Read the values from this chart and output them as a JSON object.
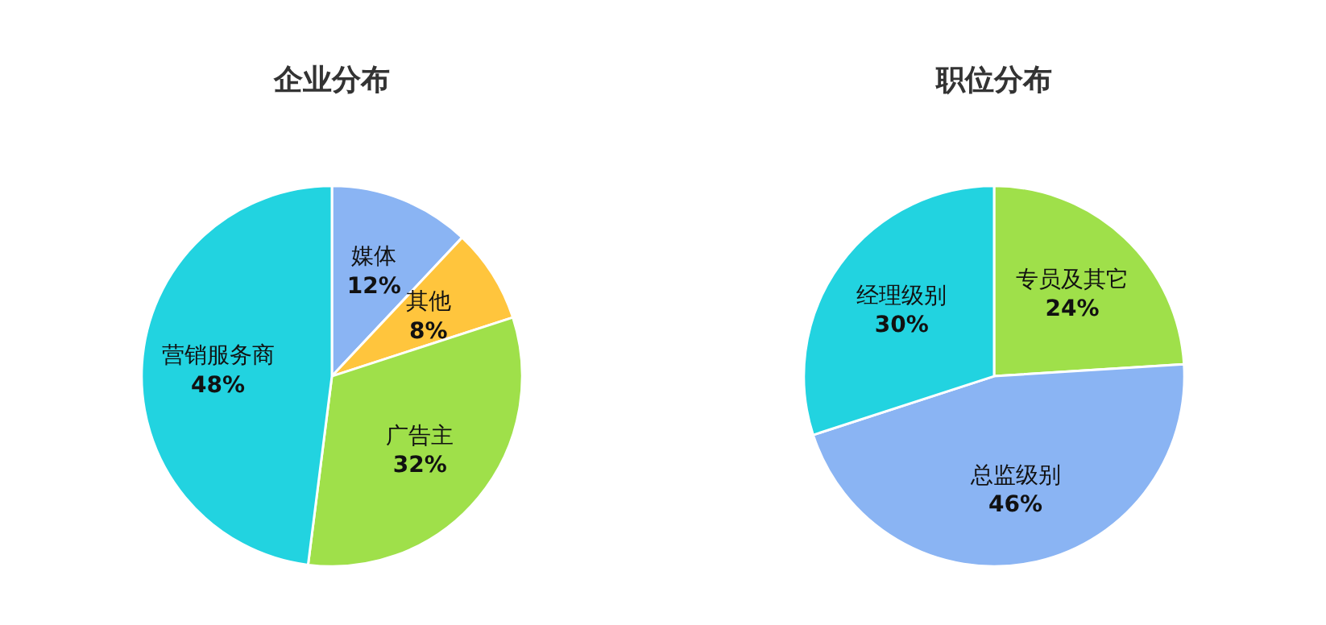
{
  "chart_data": [
    {
      "type": "pie",
      "title": "企业分布",
      "categories": [
        "媒体",
        "其他",
        "广告主",
        "营销服务商"
      ],
      "values": [
        12,
        8,
        32,
        48
      ],
      "value_labels": [
        "12%",
        "8%",
        "32%",
        "48%"
      ],
      "colors": [
        "#8ab4f3",
        "#ffc53d",
        "#9fe04a",
        "#22d3e0"
      ]
    },
    {
      "type": "pie",
      "title": "职位分布",
      "categories": [
        "专员及其它",
        "总监级别",
        "经理级别"
      ],
      "values": [
        24,
        46,
        30
      ],
      "value_labels": [
        "24%",
        "46%",
        "30%"
      ],
      "colors": [
        "#9fe04a",
        "#8ab4f3",
        "#22d3e0"
      ]
    }
  ]
}
